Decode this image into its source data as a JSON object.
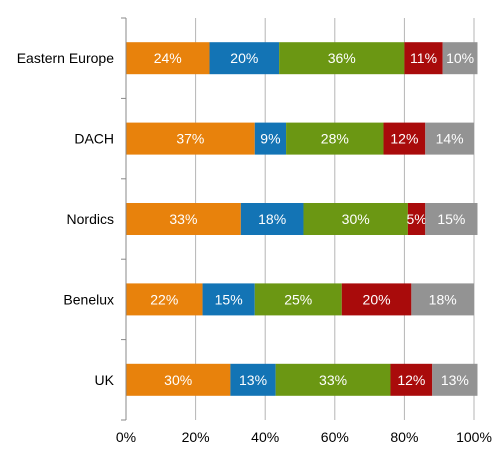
{
  "chart_data": {
    "type": "bar",
    "orientation": "horizontal",
    "stacked": true,
    "percent": true,
    "title": "",
    "xlabel": "",
    "ylabel": "",
    "categories": [
      "Eastern Europe",
      "DACH",
      "Nordics",
      "Benelux",
      "UK"
    ],
    "series": [
      {
        "color": "#e8820c",
        "values": [
          24,
          37,
          33,
          22,
          30
        ],
        "labels": [
          "24%",
          "37%",
          "33%",
          "22%",
          "30%"
        ]
      },
      {
        "color": "#1374b5",
        "values": [
          20,
          9,
          18,
          15,
          13
        ],
        "labels": [
          "20%",
          "9%",
          "18%",
          "15%",
          "13%"
        ]
      },
      {
        "color": "#6b9713",
        "values": [
          36,
          28,
          30,
          25,
          33
        ],
        "labels": [
          "36%",
          "28%",
          "30%",
          "25%",
          "33%"
        ]
      },
      {
        "color": "#a90b0b",
        "values": [
          11,
          12,
          5,
          20,
          12
        ],
        "labels": [
          "11%",
          "12%",
          "5%",
          "20%",
          "12%"
        ]
      },
      {
        "color": "#939393",
        "values": [
          10,
          14,
          15,
          18,
          13
        ],
        "labels": [
          "10%",
          "14%",
          "15%",
          "18%",
          "13%"
        ]
      }
    ],
    "xlim": [
      0,
      100
    ],
    "xticks": [
      "0%",
      "20%",
      "40%",
      "60%",
      "80%",
      "100%"
    ],
    "grid": true,
    "legend": "none"
  }
}
